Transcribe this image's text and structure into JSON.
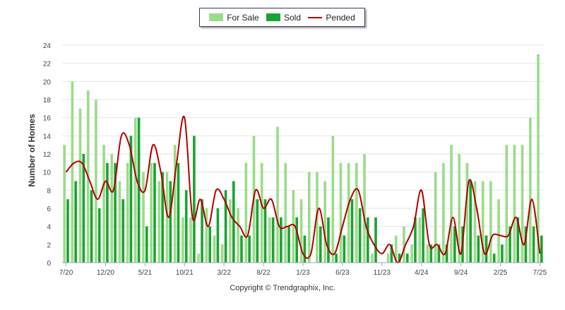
{
  "legend": {
    "for_sale": "For Sale",
    "sold": "Sold",
    "pended": "Pended"
  },
  "copyright": "Copyright © Trendgraphix, Inc.",
  "colors": {
    "for_sale": "#9bdc8a",
    "sold": "#1aa332",
    "pended": "#b00000",
    "grid": "#e6e6e6"
  },
  "chart_data": {
    "type": "bar",
    "ylabel": "Number of Homes",
    "ylim": [
      0,
      24
    ],
    "yticks": [
      0,
      2,
      4,
      6,
      8,
      10,
      12,
      14,
      16,
      18,
      20,
      22,
      24
    ],
    "xtick_labels": [
      {
        "label": "7/20",
        "index": 0
      },
      {
        "label": "12/20",
        "index": 5
      },
      {
        "label": "5/21",
        "index": 10
      },
      {
        "label": "10/21",
        "index": 15
      },
      {
        "label": "3/22",
        "index": 20
      },
      {
        "label": "8/22",
        "index": 25
      },
      {
        "label": "1/23",
        "index": 30
      },
      {
        "label": "6/23",
        "index": 35
      },
      {
        "label": "11/23",
        "index": 40
      },
      {
        "label": "4/24",
        "index": 45
      },
      {
        "label": "9/24",
        "index": 50
      },
      {
        "label": "2/25",
        "index": 55
      },
      {
        "label": "7/25",
        "index": 60
      }
    ],
    "grid": true,
    "legend_position": "top-center",
    "series": [
      {
        "name": "For Sale",
        "kind": "bar",
        "values": [
          13,
          20,
          17,
          19,
          18,
          13,
          12,
          9,
          11,
          16,
          10,
          11,
          9,
          10,
          13,
          5,
          5,
          1,
          6,
          3,
          2,
          7,
          6,
          11,
          14,
          11,
          5,
          15,
          11,
          8,
          7,
          10,
          10,
          9,
          14,
          11,
          11,
          11,
          12,
          1,
          0,
          1,
          3,
          4,
          2,
          5,
          2,
          10,
          11,
          13,
          12,
          11,
          9,
          9,
          9,
          7,
          13,
          13,
          13,
          16,
          23
        ]
      },
      {
        "name": "Sold",
        "kind": "bar",
        "values": [
          7,
          9,
          12,
          8,
          6,
          11,
          11,
          7,
          14,
          16,
          4,
          11,
          10,
          9,
          11,
          8,
          14,
          7,
          4,
          6,
          8,
          9,
          3,
          3,
          7,
          7,
          5,
          5,
          4,
          5,
          3,
          0,
          4,
          5,
          1,
          3,
          7,
          6,
          5,
          5,
          0,
          2,
          1,
          1,
          5,
          6,
          2,
          2,
          2,
          4,
          4,
          9,
          3,
          3,
          1,
          2,
          4,
          5,
          4,
          4,
          3
        ]
      },
      {
        "name": "Pended",
        "kind": "line",
        "values": [
          10,
          11,
          11,
          9,
          7,
          9,
          8,
          14,
          13,
          9,
          8,
          13,
          10,
          5,
          11,
          16,
          5,
          7,
          4,
          8,
          7,
          5,
          4,
          3,
          8,
          6,
          7,
          4,
          4,
          4,
          1,
          1,
          6,
          2,
          1,
          4,
          7,
          8,
          4,
          2,
          1,
          2,
          0,
          2,
          4,
          8,
          2,
          2,
          1,
          5,
          1,
          9,
          6,
          1,
          3,
          3,
          3,
          5,
          2,
          7,
          1
        ]
      }
    ]
  }
}
